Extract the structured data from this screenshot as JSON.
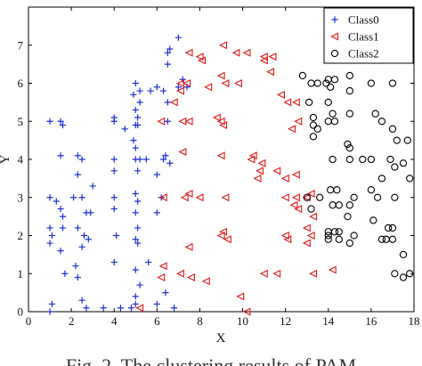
{
  "chart_data": {
    "type": "scatter",
    "xlabel": "X",
    "ylabel": "Y",
    "xlim": [
      0,
      18
    ],
    "ylim": [
      0,
      8
    ],
    "xticks": [
      0,
      2,
      4,
      6,
      8,
      10,
      12,
      14,
      16,
      18
    ],
    "yticks": [
      0,
      1,
      2,
      3,
      4,
      5,
      6,
      7
    ],
    "grid": false,
    "legend_position": "top-right",
    "series": [
      {
        "name": "Class0",
        "marker": "plus",
        "color": "#1f2fd6",
        "points": [
          [
            1.0,
            5.0
          ],
          [
            1.5,
            5.0
          ],
          [
            1.6,
            4.9
          ],
          [
            1.5,
            4.1
          ],
          [
            2.3,
            4.1
          ],
          [
            2.5,
            4.0
          ],
          [
            1.0,
            3.0
          ],
          [
            1.3,
            2.9
          ],
          [
            1.5,
            2.7
          ],
          [
            1.6,
            2.5
          ],
          [
            1.0,
            2.2
          ],
          [
            1.1,
            2.0
          ],
          [
            1.0,
            1.8
          ],
          [
            1.6,
            2.2
          ],
          [
            1.5,
            1.6
          ],
          [
            2.3,
            2.2
          ],
          [
            2.6,
            2.0
          ],
          [
            2.8,
            1.9
          ],
          [
            2.5,
            1.7
          ],
          [
            1.7,
            1.0
          ],
          [
            2.2,
            1.2
          ],
          [
            2.3,
            0.9
          ],
          [
            1.1,
            0.2
          ],
          [
            2.5,
            0.3
          ],
          [
            2.7,
            0.1
          ],
          [
            1.0,
            0.0
          ],
          [
            2.1,
            3.0
          ],
          [
            2.5,
            3.0
          ],
          [
            2.7,
            2.6
          ],
          [
            2.9,
            2.6
          ],
          [
            3.0,
            3.3
          ],
          [
            2.3,
            3.6
          ],
          [
            4.0,
            5.1
          ],
          [
            4.0,
            5.0
          ],
          [
            4.0,
            4.0
          ],
          [
            4.0,
            3.7
          ],
          [
            4.0,
            3.0
          ],
          [
            4.0,
            2.7
          ],
          [
            4.1,
            2.0
          ],
          [
            4.0,
            1.3
          ],
          [
            4.3,
            0.1
          ],
          [
            3.5,
            0.1
          ],
          [
            4.5,
            4.8
          ],
          [
            4.9,
            4.5
          ],
          [
            5.0,
            4.9
          ],
          [
            5.1,
            4.9
          ],
          [
            5.0,
            4.3
          ],
          [
            5.0,
            4.0
          ],
          [
            5.2,
            4.0
          ],
          [
            5.1,
            3.7
          ],
          [
            5.0,
            3.1
          ],
          [
            5.1,
            2.9
          ],
          [
            5.0,
            2.6
          ],
          [
            5.1,
            2.2
          ],
          [
            5.0,
            1.9
          ],
          [
            5.1,
            1.8
          ],
          [
            5.0,
            1.1
          ],
          [
            5.2,
            0.7
          ],
          [
            5.0,
            0.4
          ],
          [
            5.0,
            0.2
          ],
          [
            4.8,
            0.1
          ],
          [
            5.0,
            6.0
          ],
          [
            5.2,
            5.8
          ],
          [
            5.2,
            5.5
          ],
          [
            5.0,
            5.3
          ],
          [
            4.9,
            5.7
          ],
          [
            5.1,
            5.1
          ],
          [
            5.7,
            5.8
          ],
          [
            6.0,
            5.9
          ],
          [
            6.3,
            5.8
          ],
          [
            6.5,
            6.5
          ],
          [
            6.5,
            6.8
          ],
          [
            6.6,
            6.9
          ],
          [
            7.0,
            7.2
          ],
          [
            7.2,
            6.1
          ],
          [
            7.0,
            5.9
          ],
          [
            7.4,
            5.9
          ],
          [
            6.5,
            5.5
          ],
          [
            6.5,
            5.0
          ],
          [
            6.3,
            4.0
          ],
          [
            6.4,
            4.1
          ],
          [
            6.6,
            3.9
          ],
          [
            5.5,
            4.0
          ],
          [
            6.0,
            3.6
          ],
          [
            6.2,
            3.0
          ],
          [
            6.0,
            2.6
          ],
          [
            6.0,
            0.2
          ],
          [
            6.4,
            0.5
          ],
          [
            5.6,
            1.3
          ],
          [
            6.8,
            0.1
          ]
        ]
      },
      {
        "name": "Class1",
        "marker": "triangle-left",
        "color": "#e01818",
        "points": [
          [
            7.5,
            6.8
          ],
          [
            8.0,
            6.7
          ],
          [
            8.1,
            6.6
          ],
          [
            9.1,
            7.0
          ],
          [
            10.2,
            6.8
          ],
          [
            9.7,
            6.8
          ],
          [
            11.0,
            6.6
          ],
          [
            11.0,
            6.7
          ],
          [
            11.4,
            6.7
          ],
          [
            11.3,
            6.3
          ],
          [
            11.8,
            5.7
          ],
          [
            12.1,
            5.5
          ],
          [
            12.5,
            5.5
          ],
          [
            12.6,
            5.0
          ],
          [
            12.3,
            4.8
          ],
          [
            7.1,
            6.0
          ],
          [
            7.4,
            6.0
          ],
          [
            8.4,
            5.9
          ],
          [
            9.2,
            6.0
          ],
          [
            9.8,
            6.0
          ],
          [
            7.1,
            5.8
          ],
          [
            6.8,
            5.5
          ],
          [
            7.2,
            5.0
          ],
          [
            7.5,
            5.0
          ],
          [
            8.8,
            5.1
          ],
          [
            9.0,
            5.0
          ],
          [
            9.1,
            4.9
          ],
          [
            6.2,
            5.0
          ],
          [
            7.2,
            4.2
          ],
          [
            9.0,
            4.1
          ],
          [
            10.5,
            4.1
          ],
          [
            10.9,
            3.9
          ],
          [
            10.7,
            3.5
          ],
          [
            10.4,
            4.0
          ],
          [
            10.8,
            3.7
          ],
          [
            11.6,
            3.7
          ],
          [
            12.0,
            3.5
          ],
          [
            12.5,
            3.6
          ],
          [
            12.0,
            3.0
          ],
          [
            12.5,
            3.0
          ],
          [
            12.4,
            2.8
          ],
          [
            12.6,
            2.7
          ],
          [
            13.2,
            3.1
          ],
          [
            13.0,
            3.0
          ],
          [
            13.3,
            2.5
          ],
          [
            13.0,
            2.2
          ],
          [
            13.2,
            2.0
          ],
          [
            12.0,
            2.0
          ],
          [
            12.1,
            1.9
          ],
          [
            13.0,
            1.8
          ],
          [
            9.0,
            2.0
          ],
          [
            9.1,
            2.1
          ],
          [
            9.3,
            1.9
          ],
          [
            11.0,
            1.0
          ],
          [
            11.6,
            1.0
          ],
          [
            13.3,
            1.0
          ],
          [
            14.2,
            1.1
          ],
          [
            6.3,
            3.0
          ],
          [
            7.3,
            3.0
          ],
          [
            8.0,
            3.0
          ],
          [
            9.2,
            3.0
          ],
          [
            6.3,
            1.2
          ],
          [
            7.1,
            1.0
          ],
          [
            7.5,
            1.7
          ],
          [
            6.2,
            0.9
          ],
          [
            7.6,
            0.9
          ],
          [
            8.3,
            0.8
          ],
          [
            9.9,
            0.4
          ],
          [
            10.2,
            0.0
          ],
          [
            5.2,
            0.1
          ],
          [
            7.5,
            3.1
          ],
          [
            9.0,
            6.2
          ]
        ]
      },
      {
        "name": "Class2",
        "marker": "circle",
        "color": "#000000",
        "points": [
          [
            12.8,
            6.2
          ],
          [
            13.2,
            6.0
          ],
          [
            13.5,
            6.0
          ],
          [
            13.9,
            6.0
          ],
          [
            14.0,
            6.1
          ],
          [
            14.3,
            6.1
          ],
          [
            14.1,
            5.9
          ],
          [
            15.0,
            6.2
          ],
          [
            15.0,
            5.8
          ],
          [
            16.0,
            6.0
          ],
          [
            17.0,
            6.0
          ],
          [
            13.1,
            5.5
          ],
          [
            14.0,
            5.5
          ],
          [
            14.2,
            5.2
          ],
          [
            13.3,
            5.1
          ],
          [
            13.3,
            4.9
          ],
          [
            14.3,
            5.0
          ],
          [
            14.0,
            5.0
          ],
          [
            13.5,
            4.8
          ],
          [
            13.3,
            4.6
          ],
          [
            15.0,
            5.2
          ],
          [
            16.2,
            5.2
          ],
          [
            16.5,
            5.0
          ],
          [
            17.0,
            4.8
          ],
          [
            17.2,
            4.5
          ],
          [
            17.7,
            4.5
          ],
          [
            14.9,
            4.4
          ],
          [
            15.0,
            4.3
          ],
          [
            15.0,
            4.0
          ],
          [
            14.2,
            4.0
          ],
          [
            15.6,
            4.0
          ],
          [
            16.0,
            4.0
          ],
          [
            16.9,
            4.0
          ],
          [
            17.1,
            3.8
          ],
          [
            17.5,
            3.9
          ],
          [
            17.8,
            3.5
          ],
          [
            17.1,
            3.0
          ],
          [
            16.0,
            3.2
          ],
          [
            16.3,
            3.0
          ],
          [
            15.2,
            3.0
          ],
          [
            14.1,
            3.2
          ],
          [
            14.4,
            3.2
          ],
          [
            13.6,
            3.0
          ],
          [
            13.0,
            3.0
          ],
          [
            14.2,
            2.8
          ],
          [
            14.5,
            2.8
          ],
          [
            15.0,
            2.8
          ],
          [
            16.5,
            3.5
          ],
          [
            13.2,
            2.7
          ],
          [
            14.9,
            2.5
          ],
          [
            16.1,
            2.4
          ],
          [
            16.8,
            2.2
          ],
          [
            17.0,
            2.2
          ],
          [
            14.0,
            2.1
          ],
          [
            14.3,
            2.1
          ],
          [
            14.5,
            2.1
          ],
          [
            14.0,
            2.0
          ],
          [
            14.0,
            1.9
          ],
          [
            14.5,
            1.9
          ],
          [
            15.2,
            2.0
          ],
          [
            16.7,
            1.9
          ],
          [
            17.0,
            1.9
          ],
          [
            15.0,
            1.8
          ],
          [
            16.5,
            1.9
          ],
          [
            17.5,
            1.5
          ],
          [
            17.1,
            1.0
          ],
          [
            17.5,
            0.9
          ],
          [
            17.8,
            1.0
          ]
        ]
      }
    ]
  },
  "caption": "Fig. 2. The clustering results of PAM"
}
